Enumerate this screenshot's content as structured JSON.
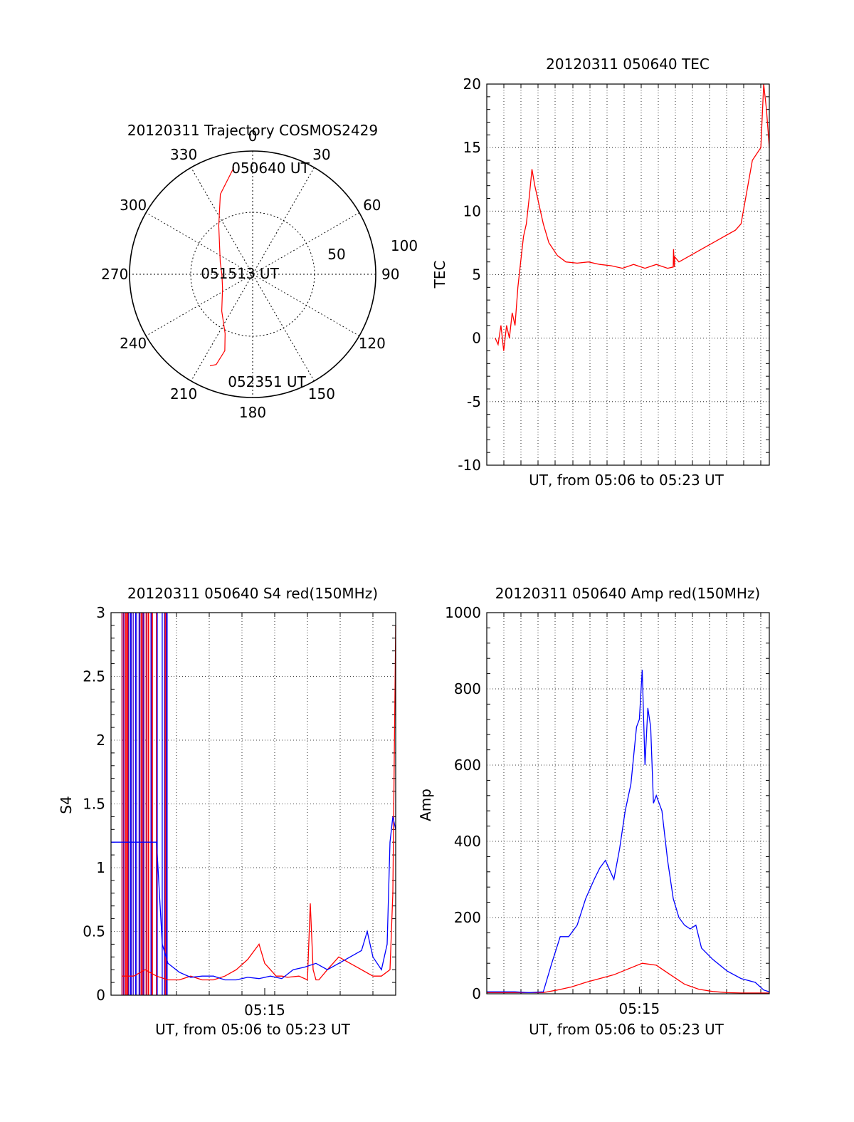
{
  "colors": {
    "red": "#ff0000",
    "blue": "#0000ff",
    "axis": "#000000",
    "grid": "#000000"
  },
  "chart_data": [
    {
      "id": "trajectory",
      "type": "polar",
      "title": "20120311 Trajectory COSMOS2429",
      "azimuth_labels": [
        "0",
        "30",
        "60",
        "90",
        "120",
        "150",
        "180",
        "210",
        "240",
        "270",
        "300",
        "330"
      ],
      "radial_labels": [
        "50",
        "100"
      ],
      "rlim": [
        0,
        100
      ],
      "series": [
        {
          "name": "trajectory",
          "color": "red",
          "points": [
            [
              -10,
              88
            ],
            [
              -22,
              70
            ],
            [
              -35,
              48
            ],
            [
              -70,
              28
            ],
            [
              -90,
              25
            ],
            [
              -115,
              27
            ],
            [
              -140,
              39
            ],
            [
              -155,
              53
            ],
            [
              -160,
              66
            ],
            [
              -158,
              79
            ],
            [
              -155,
              82
            ]
          ]
        }
      ],
      "annotations": [
        {
          "label": "050640 UT",
          "az": 8,
          "r": 80
        },
        {
          "label": "051513 UT",
          "az": 270,
          "r": 10
        },
        {
          "label": "052351 UT",
          "az": 175,
          "r": 85
        }
      ]
    },
    {
      "id": "tec",
      "type": "line",
      "title": "20120311 050640 TEC",
      "xlabel": "UT, from 05:06 to 05:23 UT",
      "ylabel": "TEC",
      "xlim": [
        0,
        1000
      ],
      "ylim": [
        -10,
        20
      ],
      "yticks": [
        "-10",
        "-5",
        "0",
        "5",
        "10",
        "15",
        "20"
      ],
      "xticks": [],
      "grid": true,
      "series": [
        {
          "name": "TEC",
          "color": "red",
          "x": [
            30,
            40,
            50,
            60,
            70,
            80,
            90,
            100,
            110,
            120,
            130,
            140,
            150,
            160,
            170,
            180,
            190,
            200,
            220,
            250,
            280,
            320,
            360,
            400,
            440,
            480,
            520,
            560,
            600,
            640,
            660,
            661,
            664,
            665,
            680,
            720,
            760,
            800,
            840,
            880,
            900,
            940,
            970,
            980,
            990,
            1000
          ],
          "y": [
            0,
            -0.5,
            1,
            -1,
            1,
            0,
            2,
            1,
            4,
            6,
            8,
            9,
            11,
            13.3,
            12,
            11,
            10,
            9,
            7.5,
            6.5,
            6,
            5.9,
            6,
            5.8,
            5.7,
            5.5,
            5.8,
            5.5,
            5.8,
            5.5,
            5.6,
            7,
            5.6,
            6.4,
            6,
            6.5,
            7,
            7.5,
            8,
            8.5,
            9,
            14,
            15,
            20,
            18,
            15
          ]
        }
      ]
    },
    {
      "id": "s4",
      "type": "line",
      "title": "20120311 050640 S4 red(150MHz)",
      "xlabel": "UT, from 05:06 to 05:23 UT",
      "ylabel": "S4",
      "xlim": [
        0,
        1000
      ],
      "ylim": [
        0,
        3
      ],
      "yticks": [
        "0",
        "0.5",
        "1",
        "1.5",
        "2",
        "2.5",
        "3"
      ],
      "xticks": [
        {
          "x": 540,
          "label": "05:15"
        }
      ],
      "grid": true,
      "series": [
        {
          "name": "S4 red",
          "color": "red",
          "x": [
            40,
            80,
            120,
            160,
            200,
            240,
            280,
            320,
            360,
            400,
            440,
            480,
            520,
            540,
            560,
            580,
            600,
            620,
            660,
            690,
            700,
            710,
            720,
            730,
            760,
            800,
            840,
            880,
            920,
            950,
            980,
            990,
            1000
          ],
          "y": [
            0.15,
            0.15,
            0.2,
            0.15,
            0.12,
            0.12,
            0.15,
            0.12,
            0.12,
            0.15,
            0.2,
            0.28,
            0.4,
            0.25,
            0.2,
            0.15,
            0.15,
            0.14,
            0.15,
            0.12,
            0.72,
            0.2,
            0.12,
            0.12,
            0.2,
            0.3,
            0.25,
            0.2,
            0.15,
            0.15,
            0.2,
            0.8,
            2.9
          ]
        },
        {
          "name": "S4 blue",
          "color": "blue",
          "x": [
            0,
            160,
            180,
            200,
            240,
            280,
            320,
            360,
            400,
            440,
            480,
            520,
            560,
            600,
            640,
            680,
            720,
            760,
            800,
            840,
            880,
            900,
            920,
            950,
            970,
            980,
            990,
            1000
          ],
          "y": [
            1.2,
            1.2,
            0.4,
            0.25,
            0.18,
            0.14,
            0.15,
            0.15,
            0.12,
            0.12,
            0.14,
            0.13,
            0.15,
            0.13,
            0.2,
            0.22,
            0.25,
            0.2,
            0.25,
            0.3,
            0.35,
            0.5,
            0.3,
            0.2,
            0.4,
            1.2,
            1.4,
            1.3
          ]
        }
      ]
    },
    {
      "id": "amp",
      "type": "line",
      "title": "20120311 050640 Amp red(150MHz)",
      "xlabel": "UT, from 05:06 to 05:23 UT",
      "ylabel": "Amp",
      "xlim": [
        0,
        1000
      ],
      "ylim": [
        0,
        1000
      ],
      "yticks": [
        "0",
        "200",
        "400",
        "600",
        "800",
        "1000"
      ],
      "xticks": [
        {
          "x": 540,
          "label": "05:15"
        }
      ],
      "grid": true,
      "series": [
        {
          "name": "Amp red",
          "color": "red",
          "x": [
            0,
            200,
            250,
            300,
            350,
            400,
            450,
            500,
            550,
            600,
            650,
            700,
            750,
            800,
            850,
            900,
            1000
          ],
          "y": [
            3,
            3,
            10,
            18,
            30,
            40,
            50,
            65,
            80,
            75,
            50,
            25,
            12,
            6,
            3,
            2,
            2
          ]
        },
        {
          "name": "Amp blue",
          "color": "blue",
          "x": [
            0,
            100,
            150,
            200,
            230,
            260,
            290,
            320,
            350,
            380,
            400,
            420,
            450,
            470,
            490,
            510,
            530,
            540,
            550,
            560,
            570,
            580,
            590,
            600,
            620,
            640,
            660,
            680,
            700,
            720,
            740,
            760,
            800,
            850,
            900,
            950,
            980,
            1000
          ],
          "y": [
            5,
            5,
            3,
            5,
            80,
            150,
            150,
            180,
            250,
            300,
            330,
            350,
            300,
            380,
            480,
            550,
            700,
            720,
            850,
            600,
            750,
            700,
            500,
            520,
            480,
            350,
            250,
            200,
            180,
            170,
            180,
            120,
            90,
            60,
            40,
            30,
            10,
            5
          ]
        }
      ]
    }
  ]
}
